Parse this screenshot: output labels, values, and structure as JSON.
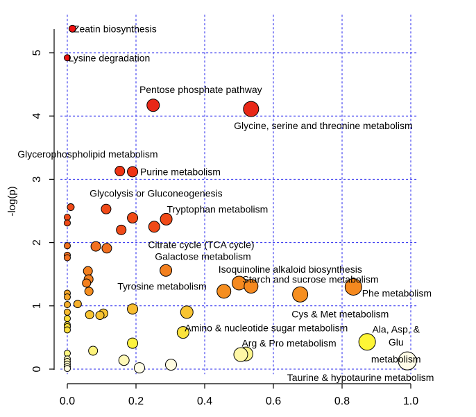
{
  "chart_data": {
    "type": "scatter",
    "title": "",
    "xlabel": "",
    "ylabel": "-log(p)",
    "xlim": [
      -0.02,
      1.02
    ],
    "ylim": [
      -0.08,
      5.6
    ],
    "x_ticks": [
      0.0,
      0.2,
      0.4,
      0.6,
      0.8,
      1.0
    ],
    "x_tick_labels": [
      "0.0",
      "0.2",
      "0.4",
      "0.6",
      "0.8",
      "1.0"
    ],
    "y_ticks": [
      0,
      1,
      2,
      3,
      4,
      5
    ],
    "y_tick_labels": [
      "0",
      "1",
      "2",
      "3",
      "4",
      "5"
    ],
    "grid": true,
    "color_scale": "white-yellow-orange-red by -log(p); size by pathway impact",
    "points": [
      {
        "x": 0.015,
        "y": 5.38,
        "label": "Zeatin biosynthesis"
      },
      {
        "x": 0.0,
        "y": 4.92,
        "label": "Lysine degradation"
      },
      {
        "x": 0.25,
        "y": 4.17,
        "label": "Pentose phosphate pathway"
      },
      {
        "x": 0.535,
        "y": 4.11,
        "label": "Glycine, serine and threonine metabolism"
      },
      {
        "x": 0.153,
        "y": 3.13,
        "label": "Glycerophospholipid metabolism"
      },
      {
        "x": 0.19,
        "y": 3.12,
        "label": "Purine metabolism"
      },
      {
        "x": 0.01,
        "y": 2.56,
        "label": ""
      },
      {
        "x": 0.113,
        "y": 2.53,
        "label": "Glycolysis or Gluconeogenesis"
      },
      {
        "x": 0.0,
        "y": 2.4,
        "label": ""
      },
      {
        "x": 0.0,
        "y": 2.31,
        "label": ""
      },
      {
        "x": 0.19,
        "y": 2.39,
        "label": ""
      },
      {
        "x": 0.288,
        "y": 2.37,
        "label": "Tryptophan metabolism"
      },
      {
        "x": 0.253,
        "y": 2.25,
        "label": ""
      },
      {
        "x": 0.157,
        "y": 2.2,
        "label": ""
      },
      {
        "x": 0.25,
        "y": 2.22,
        "label": "Citrate cycle (TCA cycle)"
      },
      {
        "x": 0.0,
        "y": 1.95,
        "label": ""
      },
      {
        "x": 0.083,
        "y": 1.94,
        "label": ""
      },
      {
        "x": 0.115,
        "y": 1.91,
        "label": ""
      },
      {
        "x": 0.0,
        "y": 1.8,
        "label": ""
      },
      {
        "x": 0.0,
        "y": 1.76,
        "label": ""
      },
      {
        "x": 0.287,
        "y": 1.56,
        "label": "Galactose metabolism"
      },
      {
        "x": 0.06,
        "y": 1.55,
        "label": ""
      },
      {
        "x": 0.062,
        "y": 1.42,
        "label": ""
      },
      {
        "x": 0.056,
        "y": 1.36,
        "label": ""
      },
      {
        "x": 0.5,
        "y": 1.36,
        "label": "Isoquinoline alkaloid biosynthesis"
      },
      {
        "x": 0.535,
        "y": 1.31,
        "label": "Starch and sucrose metabolism"
      },
      {
        "x": 0.456,
        "y": 1.23,
        "label": "Tyrosine metabolism"
      },
      {
        "x": 0.063,
        "y": 1.23,
        "label": ""
      },
      {
        "x": 0.678,
        "y": 1.18,
        "label": "Cys & Met metabolism"
      },
      {
        "x": 0.833,
        "y": 1.3,
        "label": "Phe metabolism"
      },
      {
        "x": 0.0,
        "y": 1.2,
        "label": ""
      },
      {
        "x": 0.0,
        "y": 1.14,
        "label": ""
      },
      {
        "x": 0.03,
        "y": 1.03,
        "label": ""
      },
      {
        "x": 0.0,
        "y": 1.02,
        "label": ""
      },
      {
        "x": 0.19,
        "y": 0.95,
        "label": ""
      },
      {
        "x": 0.0,
        "y": 0.9,
        "label": ""
      },
      {
        "x": 0.348,
        "y": 0.9,
        "label": "Amino & nucleotide sugar metabolism"
      },
      {
        "x": 0.105,
        "y": 0.88,
        "label": ""
      },
      {
        "x": 0.065,
        "y": 0.86,
        "label": ""
      },
      {
        "x": 0.095,
        "y": 0.85,
        "label": ""
      },
      {
        "x": 0.0,
        "y": 0.8,
        "label": ""
      },
      {
        "x": 0.0,
        "y": 0.7,
        "label": ""
      },
      {
        "x": 0.0,
        "y": 0.67,
        "label": ""
      },
      {
        "x": 0.0,
        "y": 0.62,
        "label": ""
      },
      {
        "x": 0.337,
        "y": 0.58,
        "label": ""
      },
      {
        "x": 0.19,
        "y": 0.41,
        "label": ""
      },
      {
        "x": 0.873,
        "y": 0.43,
        "label": "Ala, Asp, & Glu metabolism"
      },
      {
        "x": 0.075,
        "y": 0.29,
        "label": ""
      },
      {
        "x": 0.0,
        "y": 0.25,
        "label": ""
      },
      {
        "x": 0.52,
        "y": 0.24,
        "label": "Arg & Pro metabolism"
      },
      {
        "x": 0.505,
        "y": 0.23,
        "label": ""
      },
      {
        "x": 0.165,
        "y": 0.14,
        "label": ""
      },
      {
        "x": 0.0,
        "y": 0.16,
        "label": ""
      },
      {
        "x": 0.0,
        "y": 0.12,
        "label": ""
      },
      {
        "x": 0.0,
        "y": 0.08,
        "label": ""
      },
      {
        "x": 0.0,
        "y": 0.04,
        "label": ""
      },
      {
        "x": 0.0,
        "y": 0.01,
        "label": ""
      },
      {
        "x": 0.302,
        "y": 0.07,
        "label": ""
      },
      {
        "x": 0.21,
        "y": 0.02,
        "label": ""
      },
      {
        "x": 0.99,
        "y": 0.13,
        "label": "Taurine & hypotaurine metabolism"
      }
    ],
    "point_radii": [
      5,
      4.5,
      9,
      11,
      7,
      7.5,
      5,
      7,
      4.5,
      4.5,
      7.5,
      8.5,
      8,
      7,
      0,
      4.5,
      7,
      7,
      4.5,
      4.5,
      8.5,
      6.5,
      6.5,
      6,
      10,
      10,
      10,
      6,
      11,
      12,
      4.5,
      4.5,
      5.5,
      4.5,
      7.5,
      4.5,
      9,
      6.5,
      6,
      6,
      4.5,
      4.5,
      4.5,
      4.5,
      8.5,
      7.5,
      12,
      6.5,
      4.5,
      10,
      10,
      7.5,
      4.5,
      4.5,
      4.5,
      4.5,
      4.5,
      8,
      7.5,
      13
    ],
    "point_colors": [
      "#ee1111",
      "#ee1111",
      "#e82818",
      "#e82818",
      "#ef3414",
      "#ef3414",
      "#f04a18",
      "#f04a18",
      "#f04a18",
      "#f04a18",
      "#f04a18",
      "#f04a18",
      "#f04a18",
      "#f04a18",
      "#f04a18",
      "#f27020",
      "#f27020",
      "#f27020",
      "#f27020",
      "#f27020",
      "#f3801f",
      "#f3801f",
      "#f3801f",
      "#f3801f",
      "#f5891f",
      "#f5891f",
      "#f58e20",
      "#f58e20",
      "#f68f20",
      "#f5891f",
      "#f6a82a",
      "#f6a82a",
      "#f6b02d",
      "#f6b02d",
      "#f7bc30",
      "#f7bc30",
      "#f8c432",
      "#f8c432",
      "#f8c432",
      "#f8c432",
      "#fbdf3a",
      "#fbdf3a",
      "#fbdf3a",
      "#fbdf3a",
      "#fbe33c",
      "#fdf23e",
      "#fef536",
      "#fdf37c",
      "#fdf67e",
      "#fdf68c",
      "#fef7a6",
      "#fef8b6",
      "#fff8b8",
      "#fff8c0",
      "#fffac8",
      "#fffad4",
      "#fffbe0",
      "#fffbe0",
      "#fffde8",
      "#fffde8"
    ],
    "labels": [
      {
        "text": "Zeatin biosynthesis",
        "x": 0.018,
        "y": 5.38,
        "anchor": "start"
      },
      {
        "text": "Lysine degradation",
        "x": 0.003,
        "y": 4.92,
        "anchor": "start"
      },
      {
        "text": "Pentose phosphate pathway",
        "x": 0.21,
        "y": 4.42,
        "anchor": "start"
      },
      {
        "text": "Glycine, serine and threonine metabolism",
        "x": 0.485,
        "y": 3.85,
        "anchor": "start"
      },
      {
        "text": "Glycerophospholipid metabolism",
        "x": -0.145,
        "y": 3.4,
        "anchor": "start"
      },
      {
        "text": "Purine metabolism",
        "x": 0.212,
        "y": 3.12,
        "anchor": "start"
      },
      {
        "text": "Glycolysis or Gluconeogenesis",
        "x": 0.065,
        "y": 2.78,
        "anchor": "start"
      },
      {
        "text": "Tryptophan metabolism",
        "x": 0.29,
        "y": 2.53,
        "anchor": "start"
      },
      {
        "text": "Citrate cycle (TCA cycle)",
        "x": 0.235,
        "y": 1.97,
        "anchor": "start"
      },
      {
        "text": "Galactose metabolism",
        "x": 0.255,
        "y": 1.78,
        "anchor": "start"
      },
      {
        "text": "Isoquinoline alkaloid biosynthesis",
        "x": 0.44,
        "y": 1.58,
        "anchor": "start"
      },
      {
        "text": "Starch and sucrose metabolism",
        "x": 0.51,
        "y": 1.42,
        "anchor": "start"
      },
      {
        "text": "Tyrosine metabolism",
        "x": 0.146,
        "y": 1.31,
        "anchor": "start"
      },
      {
        "text": "Phe metabolism",
        "x": 0.858,
        "y": 1.2,
        "anchor": "start"
      },
      {
        "text": "Cys & Met metabolism",
        "x": 0.653,
        "y": 0.87,
        "anchor": "start"
      },
      {
        "text": "Amino & nucleotide sugar metabolism",
        "x": 0.342,
        "y": 0.65,
        "anchor": "start"
      },
      {
        "text": "Ala, Asp, &",
        "x": 0.957,
        "y": 0.63,
        "anchor": "middle"
      },
      {
        "text": "Glu",
        "x": 0.957,
        "y": 0.43,
        "anchor": "middle"
      },
      {
        "text": "metabolism",
        "x": 0.957,
        "y": 0.16,
        "anchor": "middle"
      },
      {
        "text": "Arg & Pro metabolism",
        "x": 0.508,
        "y": 0.41,
        "anchor": "start"
      },
      {
        "text": "Taurine & hypotaurine metabolism",
        "x": 0.64,
        "y": -0.13,
        "anchor": "start"
      }
    ]
  }
}
